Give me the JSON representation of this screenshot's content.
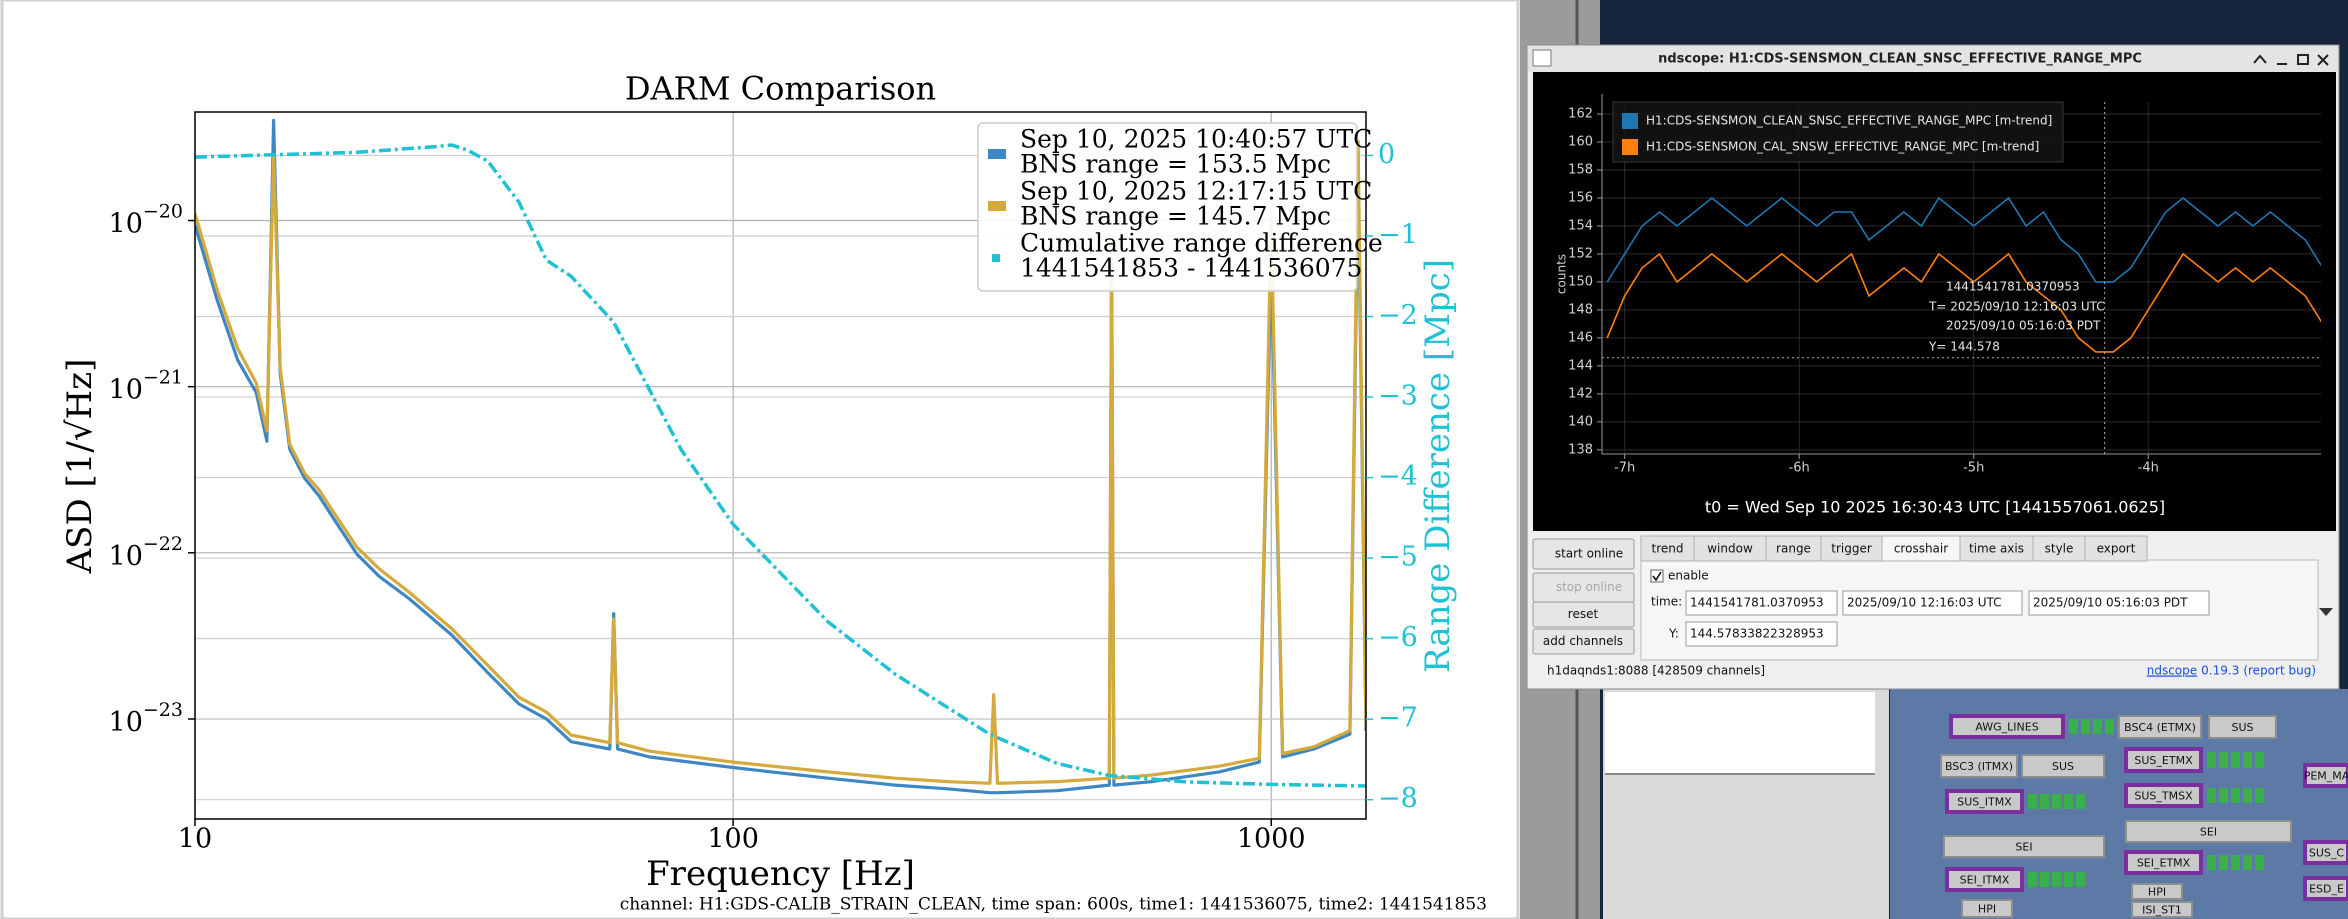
{
  "chart_data": [
    {
      "type": "line",
      "title": "DARM Comparison",
      "xlabel": "Frequency [Hz]",
      "ylabel": "ASD [1/√Hz]",
      "y2label": "Range Difference [Mpc]",
      "xscale": "log",
      "yscale": "log",
      "xlim": [
        10,
        1500
      ],
      "ylim": [
        2.5e-24,
        4.5e-20
      ],
      "y2lim": [
        -8.24,
        0.54
      ],
      "xticks": [
        10,
        100,
        1000
      ],
      "yticks": [
        {
          "value": 1e-20,
          "label": "10−20"
        },
        {
          "value": 1e-21,
          "label": "10−21"
        },
        {
          "value": 1e-22,
          "label": "10−22"
        },
        {
          "value": 1e-23,
          "label": "10−23"
        }
      ],
      "y2ticks": [
        0,
        {
          "value": -1,
          "label": "−1"
        },
        {
          "value": -2,
          "label": "−2"
        },
        {
          "value": -3,
          "label": "−3"
        },
        {
          "value": -4,
          "label": "−4"
        },
        {
          "value": -5,
          "label": "−5"
        },
        {
          "value": -6,
          "label": "−6"
        },
        {
          "value": -7,
          "label": "−7"
        },
        {
          "value": -8,
          "label": "−8"
        }
      ],
      "grid": true,
      "legend": "upper right",
      "y2color": "#1fc1d2",
      "series": [
        {
          "name": [
            "Sep 10, 2025 10:40:57 UTC",
            "BNS range = 153.5 Mpc"
          ],
          "color": "#3d87c4",
          "style": "solid",
          "x": [
            10,
            11,
            12,
            13,
            13.6,
            14,
            14.4,
            15,
            16,
            17,
            18,
            20,
            22,
            25,
            30,
            35,
            40,
            45,
            50,
            59,
            60,
            61,
            70,
            100,
            150,
            200,
            250,
            300,
            305,
            310,
            400,
            500,
            505,
            510,
            600,
            800,
            950,
            1000,
            1050,
            1200,
            1400,
            1450,
            1500
          ],
          "values": [
            9.4e-21,
            3.3e-21,
            1.45e-21,
            9.2e-22,
            4.7e-22,
            4e-20,
            1.2e-21,
            4.2e-22,
            2.8e-22,
            2.2e-22,
            1.65e-22,
            9.8e-23,
            7.2e-23,
            5.3e-23,
            3.2e-23,
            1.9e-23,
            1.23e-23,
            1e-23,
            7.3e-24,
            6.6e-24,
            4.3e-23,
            6.6e-24,
            5.9e-24,
            5.1e-24,
            4.4e-24,
            4e-24,
            3.8e-24,
            3.6e-24,
            3.6e-24,
            3.6e-24,
            3.7e-24,
            4e-24,
            6.2e-21,
            4e-24,
            4.2e-24,
            4.8e-24,
            5.5e-24,
            6e-21,
            5.9e-24,
            6.6e-24,
            8.1e-24,
            1.9e-20,
            8.5e-24
          ]
        },
        {
          "name": [
            "Sep 10, 2025 12:17:15 UTC",
            "BNS range = 145.7 Mpc"
          ],
          "color": "#d4aa3d",
          "style": "solid",
          "x": [
            10,
            11,
            12,
            13,
            13.6,
            14,
            14.4,
            15,
            16,
            17,
            18,
            20,
            22,
            25,
            30,
            35,
            40,
            45,
            50,
            59,
            60,
            61,
            70,
            100,
            150,
            200,
            250,
            300,
            305,
            310,
            400,
            500,
            505,
            510,
            600,
            800,
            950,
            1000,
            1050,
            1200,
            1400,
            1450,
            1500
          ],
          "values": [
            1.1e-20,
            3.8e-21,
            1.7e-21,
            1.05e-21,
            5.4e-22,
            2.5e-20,
            1.3e-21,
            4.5e-22,
            3e-22,
            2.4e-22,
            1.8e-22,
            1.08e-22,
            8e-23,
            5.8e-23,
            3.5e-23,
            2.1e-23,
            1.35e-23,
            1.1e-23,
            8e-24,
            7.2e-24,
            4e-23,
            7.2e-24,
            6.4e-24,
            5.5e-24,
            4.8e-24,
            4.4e-24,
            4.2e-24,
            4.1e-24,
            1.4e-23,
            4.1e-24,
            4.2e-24,
            4.4e-24,
            8e-21,
            4.4e-24,
            4.6e-24,
            5.2e-24,
            5.8e-24,
            1e-20,
            6.2e-24,
            6.8e-24,
            8.5e-24,
            3e-20,
            9e-24
          ]
        },
        {
          "name": [
            "Cumulative range difference",
            "1441541853 - 1441536075"
          ],
          "color": "#1fc1d2",
          "style": "dashdot",
          "axis": "y2",
          "x": [
            10,
            20,
            28,
            30,
            32,
            35,
            40,
            45,
            50,
            60,
            80,
            100,
            150,
            200,
            300,
            400,
            500,
            700,
            1000,
            1500
          ],
          "values": [
            -0.02,
            0.04,
            0.11,
            0.13,
            0.07,
            -0.07,
            -0.58,
            -1.3,
            -1.5,
            -2.07,
            -3.65,
            -4.58,
            -5.79,
            -6.44,
            -7.19,
            -7.55,
            -7.7,
            -7.78,
            -7.81,
            -7.83
          ]
        }
      ]
    },
    {
      "type": "line",
      "ylabel": "counts",
      "xlim": [
        -7.13,
        -3.01
      ],
      "ylim": [
        137.7,
        162.86
      ],
      "xticks": [
        {
          "value": -7,
          "label": "-7h"
        },
        {
          "value": -6,
          "label": "-6h"
        },
        {
          "value": -5,
          "label": "-5h"
        },
        {
          "value": -4,
          "label": "-4h"
        }
      ],
      "yticks": [
        138,
        140,
        142,
        144,
        146,
        148,
        150,
        152,
        154,
        156,
        158,
        160,
        162
      ],
      "grid": true,
      "legend": "upper left",
      "t0_label": "t0 = Wed Sep 10 2025 16:30:43 UTC [1441557061.0625]",
      "crosshair": {
        "x": -4.25,
        "y": 144.578,
        "lines": [
          "1441541781.0370953",
          "T= 2025/09/10 12:16:03 UTC",
          "2025/09/10 05:16:03 PDT",
          "Y= 144.578"
        ]
      },
      "series": [
        {
          "name": "H1:CDS-SENSMON_CLEAN_SNSC_EFFECTIVE_RANGE_MPC [m-trend]",
          "color": "#1f77b4",
          "x": [
            -7.1,
            -7.0,
            -6.9,
            -6.8,
            -6.7,
            -6.6,
            -6.5,
            -6.4,
            -6.3,
            -6.2,
            -6.1,
            -6.0,
            -5.9,
            -5.8,
            -5.7,
            -5.6,
            -5.5,
            -5.4,
            -5.3,
            -5.2,
            -5.1,
            -5.0,
            -4.9,
            -4.8,
            -4.7,
            -4.6,
            -4.5,
            -4.4,
            -4.3,
            -4.2,
            -4.1,
            -4.0,
            -3.9,
            -3.8,
            -3.7,
            -3.6,
            -3.5,
            -3.4,
            -3.3,
            -3.2,
            -3.1,
            -3.0
          ],
          "values": [
            150,
            152,
            154,
            155,
            154,
            155,
            156,
            155,
            154,
            155,
            156,
            155,
            154,
            155,
            155,
            153,
            154,
            155,
            154,
            156,
            155,
            154,
            155,
            156,
            154,
            155,
            153,
            152,
            150,
            150,
            151,
            153,
            155,
            156,
            155,
            154,
            155,
            154,
            155,
            154,
            153,
            151
          ]
        },
        {
          "name": "H1:CDS-SENSMON_CAL_SNSW_EFFECTIVE_RANGE_MPC [m-trend]",
          "color": "#ff7f0e",
          "x": [
            -7.1,
            -7.0,
            -6.9,
            -6.8,
            -6.7,
            -6.6,
            -6.5,
            -6.4,
            -6.3,
            -6.2,
            -6.1,
            -6.0,
            -5.9,
            -5.8,
            -5.7,
            -5.6,
            -5.5,
            -5.4,
            -5.3,
            -5.2,
            -5.1,
            -5.0,
            -4.9,
            -4.8,
            -4.7,
            -4.6,
            -4.5,
            -4.4,
            -4.3,
            -4.2,
            -4.1,
            -4.0,
            -3.9,
            -3.8,
            -3.7,
            -3.6,
            -3.5,
            -3.4,
            -3.3,
            -3.2,
            -3.1,
            -3.0
          ],
          "values": [
            146,
            149,
            151,
            152,
            150,
            151,
            152,
            151,
            150,
            151,
            152,
            151,
            150,
            151,
            152,
            149,
            150,
            151,
            150,
            152,
            151,
            150,
            151,
            152,
            150,
            149,
            148,
            146,
            145,
            145,
            146,
            148,
            150,
            152,
            151,
            150,
            151,
            150,
            151,
            150,
            149,
            147
          ]
        }
      ]
    }
  ],
  "main_window": {
    "footer": "channel: H1:GDS-CALIB_STRAIN_CLEAN, time span: 600s, time1: 1441536075, time2: 1441541853"
  },
  "ndscope": {
    "window_title": "ndscope: H1:CDS-SENSMON_CLEAN_SNSC_EFFECTIVE_RANGE_MPC",
    "buttons": [
      "start online",
      "stop online",
      "reset",
      "add channels"
    ],
    "tabs": [
      "trend",
      "window",
      "range",
      "trigger",
      "crosshair",
      "time axis",
      "style",
      "export"
    ],
    "active_tab": 4,
    "enable": "enable",
    "time_label": "time:",
    "time_fields": [
      "1441541781.0370953",
      "2025/09/10 12:16:03 UTC",
      "2025/09/10 05:16:03 PDT"
    ],
    "y_label": "Y:",
    "y_field": "144.57833822328953",
    "status": "h1daqnds1:8088  [428509 channels]",
    "link": "ndscope",
    "version": "0.19.3",
    "report": "(report bug)"
  },
  "background_panel": {
    "labels": [
      "AWG_LINES",
      "BSC4 (ETMX)",
      "SUS",
      "BSC3 (ITMX)",
      "SUS",
      "SUS_ETMX",
      "SUS_TMSX",
      "SUS_ITMX",
      "SEI",
      "SEI",
      "SEI_ETMX",
      "SEI_ITMX",
      "HPI",
      "ISI_ST1",
      "HPI",
      "PEM_MA",
      "SUS_C",
      "ESD_E"
    ]
  }
}
